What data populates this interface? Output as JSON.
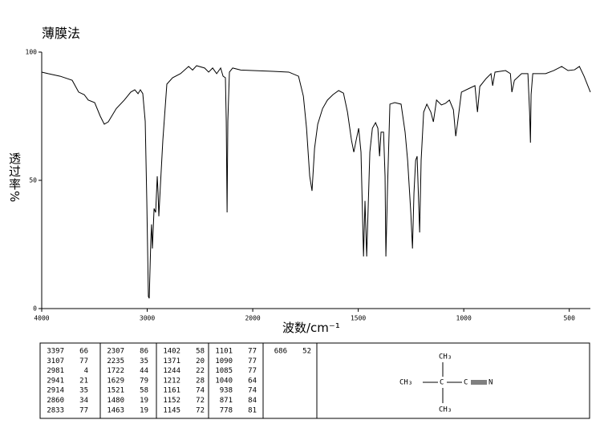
{
  "chart_data": {
    "type": "line",
    "title": "薄膜法",
    "x_label": "波数/cm⁻¹",
    "y_label": "透过率%",
    "xlim": [
      4000,
      400
    ],
    "x_scale_break": 2000,
    "x_scale_ratio": 2,
    "xticks": [
      4000,
      3000,
      2000,
      1500,
      1000,
      500
    ],
    "ylim": [
      0,
      100
    ],
    "yticks": [
      0,
      50,
      100
    ],
    "color": "#000000",
    "x": [
      4000,
      3939,
      3825,
      3711,
      3650,
      3597,
      3559,
      3498,
      3445,
      3407,
      3369,
      3293,
      3217,
      3156,
      3118,
      3087,
      3065,
      3042,
      3019,
      3004,
      2989,
      2981,
      2966,
      2959,
      2951,
      2935,
      2920,
      2905,
      2897,
      2890,
      2875,
      2852,
      2814,
      2760,
      2684,
      2608,
      2570,
      2532,
      2456,
      2418,
      2380,
      2342,
      2304,
      2281,
      2259,
      2251,
      2243,
      2236,
      2221,
      2190,
      2114,
      2000,
      1905,
      1829,
      1783,
      1760,
      1745,
      1730,
      1719,
      1707,
      1692,
      1669,
      1646,
      1620,
      1593,
      1570,
      1551,
      1532,
      1521,
      1510,
      1498,
      1487,
      1475,
      1468,
      1460,
      1452,
      1445,
      1433,
      1418,
      1407,
      1399,
      1392,
      1380,
      1373,
      1369,
      1361,
      1350,
      1327,
      1297,
      1278,
      1266,
      1251,
      1243,
      1236,
      1228,
      1221,
      1209,
      1202,
      1190,
      1175,
      1156,
      1144,
      1129,
      1106,
      1087,
      1068,
      1049,
      1038,
      1030,
      1011,
      973,
      947,
      935,
      924,
      894,
      871,
      863,
      852,
      802,
      779,
      772,
      760,
      726,
      696,
      688,
      684,
      681,
      673,
      612,
      574,
      536,
      506,
      475,
      452,
      430,
      400
    ],
    "values": [
      92.2,
      91.6,
      90.6,
      89,
      84.4,
      83.4,
      81.3,
      80.3,
      75,
      71.9,
      72.8,
      78,
      81.3,
      84.4,
      85.3,
      83.8,
      85.3,
      83.8,
      73,
      42,
      4.7,
      4,
      26.6,
      32.8,
      23.4,
      39,
      37.5,
      51.6,
      45,
      36,
      48,
      65.6,
      87.5,
      90,
      91.6,
      94.4,
      93,
      94.7,
      93.8,
      92.2,
      93.8,
      91.6,
      93.8,
      90.6,
      90,
      73,
      37.5,
      73,
      92.2,
      93.8,
      93,
      92.8,
      92.5,
      92.2,
      90.6,
      82.8,
      70.3,
      51.6,
      45.9,
      62.5,
      71.9,
      78,
      81.3,
      83.4,
      85,
      84,
      76.6,
      65.6,
      61,
      65.6,
      70.3,
      61,
      20.3,
      42,
      20.3,
      42,
      61,
      70.3,
      72.5,
      70.3,
      59.4,
      68.8,
      68.8,
      51.6,
      20.3,
      48,
      79.7,
      80.3,
      79.7,
      68.8,
      57.8,
      37.5,
      23.4,
      45,
      57.8,
      59.4,
      29.7,
      57.8,
      76.6,
      79.7,
      76.6,
      72.8,
      81.3,
      79.4,
      80,
      81.3,
      77.5,
      67.2,
      71.9,
      84.4,
      85.9,
      86.9,
      76.6,
      86.6,
      89.7,
      91.6,
      86.9,
      92.2,
      92.8,
      91.6,
      84.4,
      89,
      91.6,
      91.6,
      76.6,
      64.7,
      83.4,
      91.6,
      91.6,
      92.8,
      94.4,
      92.8,
      93.1,
      94.4,
      90.6,
      84.4
    ]
  },
  "peak_table": [
    [
      [
        3397,
        66
      ],
      [
        3107,
        77
      ],
      [
        2981,
        4
      ],
      [
        2941,
        21
      ],
      [
        2914,
        35
      ],
      [
        2860,
        34
      ],
      [
        2833,
        77
      ]
    ],
    [
      [
        2307,
        86
      ],
      [
        2235,
        35
      ],
      [
        1722,
        44
      ],
      [
        1629,
        79
      ],
      [
        1521,
        58
      ],
      [
        1480,
        19
      ],
      [
        1463,
        19
      ]
    ],
    [
      [
        1402,
        58
      ],
      [
        1371,
        20
      ],
      [
        1244,
        22
      ],
      [
        1212,
        28
      ],
      [
        1161,
        74
      ],
      [
        1152,
        72
      ],
      [
        1145,
        72
      ]
    ],
    [
      [
        1101,
        77
      ],
      [
        1090,
        77
      ],
      [
        1085,
        77
      ],
      [
        1040,
        64
      ],
      [
        938,
        74
      ],
      [
        871,
        84
      ],
      [
        778,
        81
      ]
    ],
    [
      [
        686,
        52
      ]
    ]
  ],
  "structure": {
    "top": "CH₃",
    "left": "CH₃",
    "center": "C",
    "nitrile_carbon": "C",
    "nitrogen": "N",
    "bottom": "CH₃"
  }
}
